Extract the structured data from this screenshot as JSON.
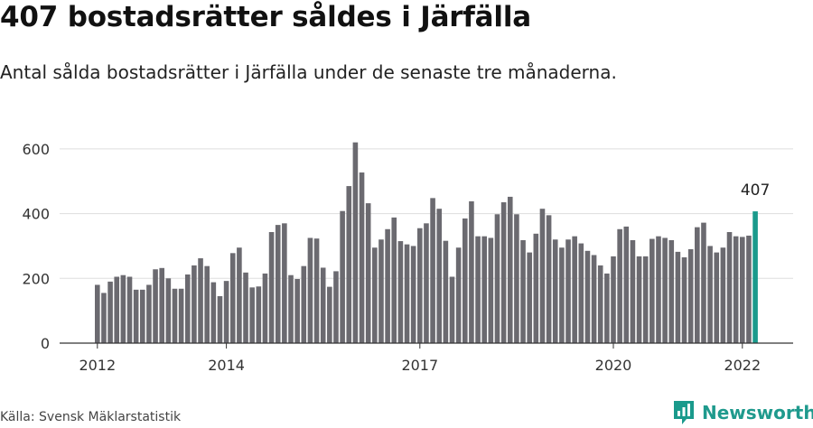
{
  "header": {
    "title": "407 bostadsrätter såldes i Järfälla",
    "subtitle": "Antal sålda bostadsrätter i Järfälla under de senaste tre månaderna."
  },
  "footer": {
    "source": "Källa: Svensk Mäklarstatistik",
    "brand": "Newsworthy"
  },
  "colors": {
    "bar": "#6b6a70",
    "highlight": "#1a9a8c",
    "grid": "#dddddd",
    "axis": "#333333"
  },
  "chart_data": {
    "type": "bar",
    "x_tick_labels": [
      "2012",
      "2014",
      "2017",
      "2020",
      "2022"
    ],
    "x_tick_positions": [
      0,
      20,
      50,
      80,
      100
    ],
    "y_ticks": [
      0,
      200,
      400,
      600
    ],
    "ylim": [
      0,
      700
    ],
    "highlight_index": 102,
    "annotation": "407",
    "values": [
      180,
      155,
      190,
      205,
      210,
      205,
      165,
      165,
      180,
      228,
      232,
      200,
      168,
      168,
      212,
      240,
      262,
      238,
      188,
      145,
      192,
      278,
      295,
      218,
      172,
      175,
      215,
      343,
      365,
      370,
      210,
      198,
      238,
      325,
      323,
      233,
      174,
      222,
      408,
      485,
      620,
      527,
      432,
      295,
      320,
      352,
      388,
      315,
      305,
      300,
      355,
      370,
      448,
      415,
      316,
      205,
      295,
      385,
      438,
      330,
      330,
      325,
      398,
      435,
      452,
      398,
      318,
      280,
      338,
      415,
      395,
      320,
      295,
      320,
      330,
      308,
      285,
      272,
      240,
      215,
      268,
      352,
      360,
      318,
      268,
      268,
      322,
      330,
      325,
      318,
      282,
      265,
      290,
      358,
      372,
      300,
      280,
      295,
      343,
      330,
      328,
      332,
      407
    ]
  }
}
